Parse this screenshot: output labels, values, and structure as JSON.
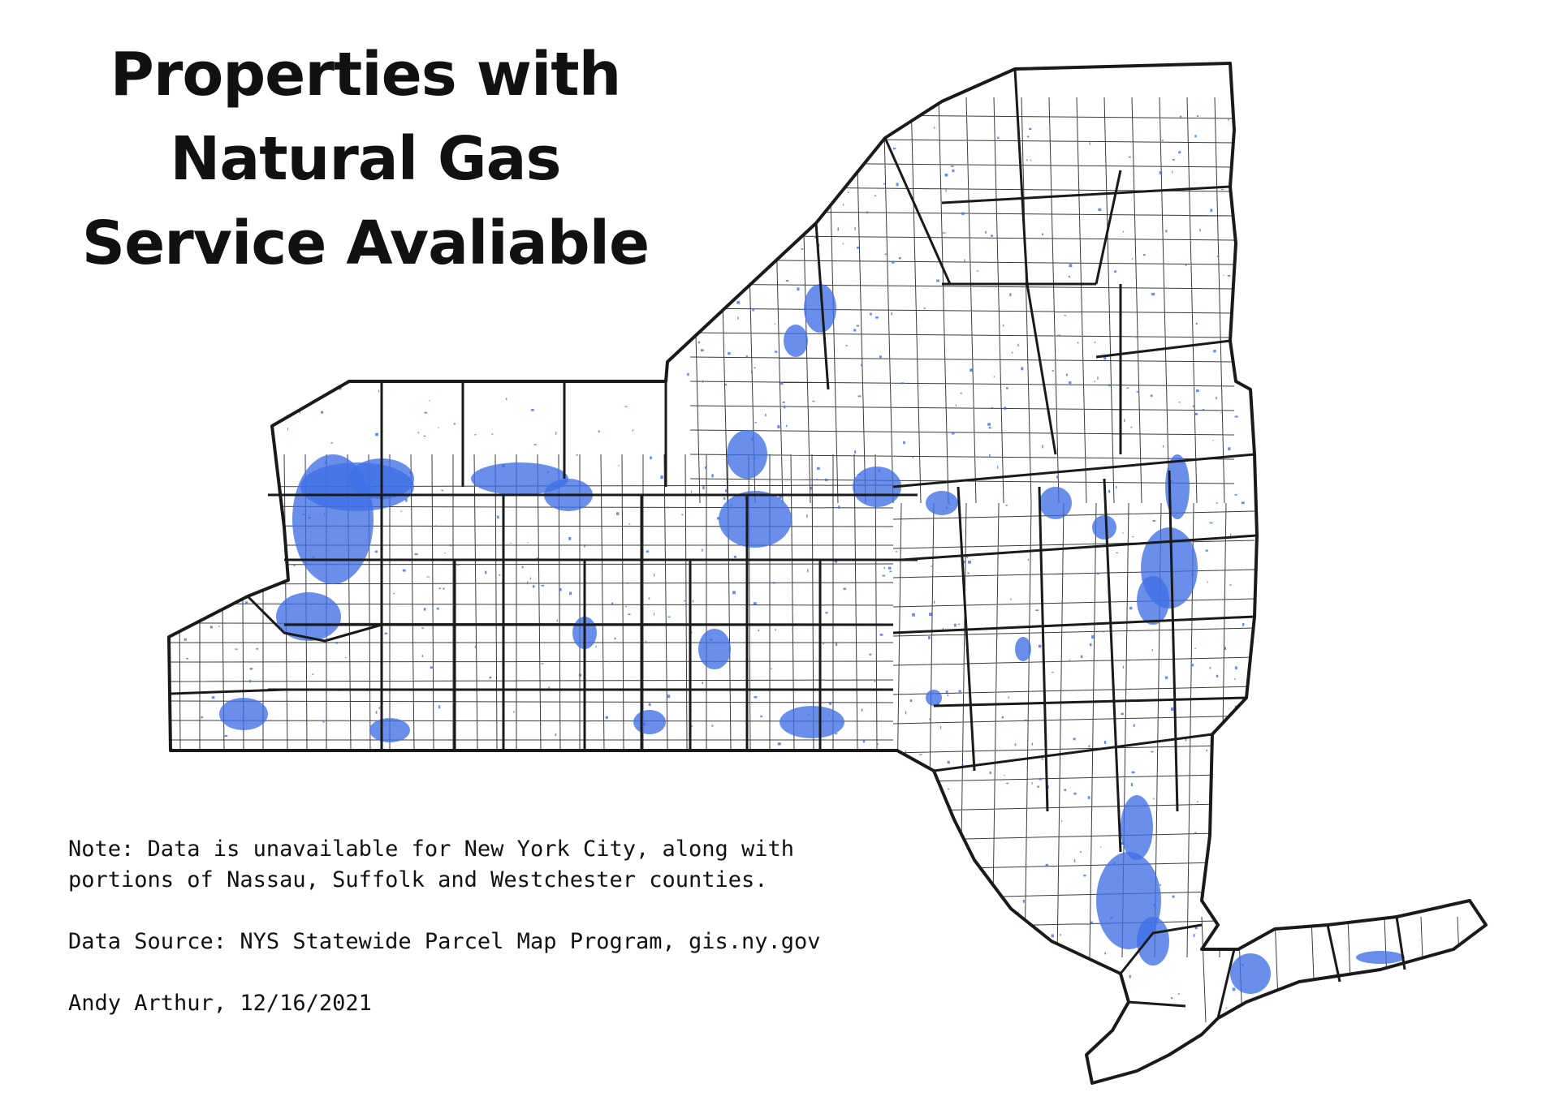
{
  "title": {
    "line1": "Properties with",
    "line2": "Natural Gas",
    "line3": "Service Avaliable"
  },
  "notes": {
    "note_line1": "Note: Data is unavailable for New York City, along with",
    "note_line2": "portions of Nassau, Suffolk and Westchester counties.",
    "source": "Data Source: NYS Statewide Parcel Map Program, gis.ny.gov",
    "credit": "Andy Arthur, 12/16/2021"
  },
  "colors": {
    "gas_service": "#3f6fe6",
    "boundary": "#1a1a1a",
    "background": "#ffffff"
  }
}
